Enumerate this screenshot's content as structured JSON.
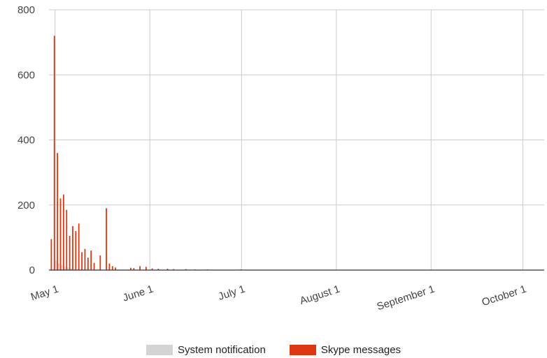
{
  "chart_data": {
    "type": "bar",
    "x_type": "date",
    "x_range": [
      "2013-04-29",
      "2013-10-08"
    ],
    "ylim": [
      0,
      800
    ],
    "y_ticks": [
      0,
      200,
      400,
      600,
      800
    ],
    "x_ticks": [
      {
        "date": "2013-05-01",
        "label": "May 1"
      },
      {
        "date": "2013-06-01",
        "label": "June 1"
      },
      {
        "date": "2013-07-01",
        "label": "July 1"
      },
      {
        "date": "2013-08-01",
        "label": "August 1"
      },
      {
        "date": "2013-09-01",
        "label": "September 1"
      },
      {
        "date": "2013-10-01",
        "label": "October 1"
      }
    ],
    "grid": true,
    "legend_position": "bottom",
    "series": [
      {
        "name": "System notification",
        "color": "#d4d4d4",
        "points": [
          {
            "x": "2013-05-01",
            "y": 30
          },
          {
            "x": "2013-05-02",
            "y": 20
          },
          {
            "x": "2013-05-03",
            "y": 15
          },
          {
            "x": "2013-05-04",
            "y": 10
          },
          {
            "x": "2013-05-05",
            "y": 8
          },
          {
            "x": "2013-05-06",
            "y": 5
          }
        ]
      },
      {
        "name": "Skype messages",
        "color": "#dc3912",
        "points": [
          {
            "x": "2013-04-29",
            "y": 95
          },
          {
            "x": "2013-04-30",
            "y": 720
          },
          {
            "x": "2013-05-01",
            "y": 360
          },
          {
            "x": "2013-05-02",
            "y": 220
          },
          {
            "x": "2013-05-03",
            "y": 232
          },
          {
            "x": "2013-05-04",
            "y": 185
          },
          {
            "x": "2013-05-05",
            "y": 105
          },
          {
            "x": "2013-05-06",
            "y": 135
          },
          {
            "x": "2013-05-07",
            "y": 120
          },
          {
            "x": "2013-05-08",
            "y": 143
          },
          {
            "x": "2013-05-09",
            "y": 55
          },
          {
            "x": "2013-05-10",
            "y": 65
          },
          {
            "x": "2013-05-11",
            "y": 38
          },
          {
            "x": "2013-05-12",
            "y": 60
          },
          {
            "x": "2013-05-13",
            "y": 22
          },
          {
            "x": "2013-05-15",
            "y": 45
          },
          {
            "x": "2013-05-17",
            "y": 190
          },
          {
            "x": "2013-05-18",
            "y": 20
          },
          {
            "x": "2013-05-19",
            "y": 12
          },
          {
            "x": "2013-05-20",
            "y": 8
          },
          {
            "x": "2013-05-25",
            "y": 7
          },
          {
            "x": "2013-05-26",
            "y": 6
          },
          {
            "x": "2013-05-28",
            "y": 12
          },
          {
            "x": "2013-05-30",
            "y": 10
          },
          {
            "x": "2013-06-01",
            "y": 5
          },
          {
            "x": "2013-06-03",
            "y": 4
          },
          {
            "x": "2013-06-06",
            "y": 4
          },
          {
            "x": "2013-06-08",
            "y": 3
          },
          {
            "x": "2013-06-12",
            "y": 3
          },
          {
            "x": "2013-06-15",
            "y": 2
          },
          {
            "x": "2013-06-19",
            "y": 2
          },
          {
            "x": "2013-06-25",
            "y": 1
          },
          {
            "x": "2013-06-30",
            "y": 2
          },
          {
            "x": "2013-07-03",
            "y": 1
          }
        ]
      }
    ]
  }
}
